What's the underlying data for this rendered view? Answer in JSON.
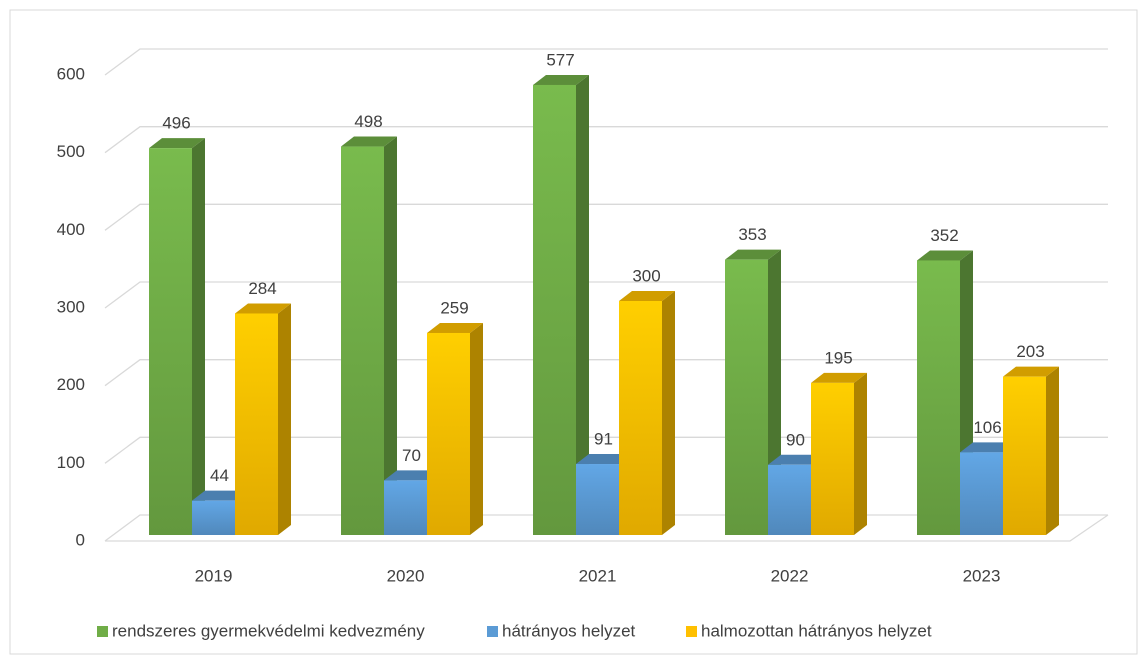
{
  "chart_data": {
    "type": "bar3d",
    "categories": [
      "2019",
      "2020",
      "2021",
      "2022",
      "2023"
    ],
    "series": [
      {
        "name": "rendszeres gyermekvédelmi kedvezmény",
        "color": "#70ad47",
        "values": [
          496,
          498,
          577,
          353,
          352
        ]
      },
      {
        "name": "hátrányos helyzet",
        "color": "#5b9bd5",
        "values": [
          44,
          70,
          91,
          90,
          106
        ]
      },
      {
        "name": "halmozottan hátrányos helyzet",
        "color": "#ffc000",
        "values": [
          284,
          259,
          300,
          195,
          203
        ]
      }
    ],
    "ylim": [
      0,
      600
    ],
    "yticks": [
      0,
      100,
      200,
      300,
      400,
      500,
      600
    ],
    "grid": true,
    "legend": "bottom"
  }
}
